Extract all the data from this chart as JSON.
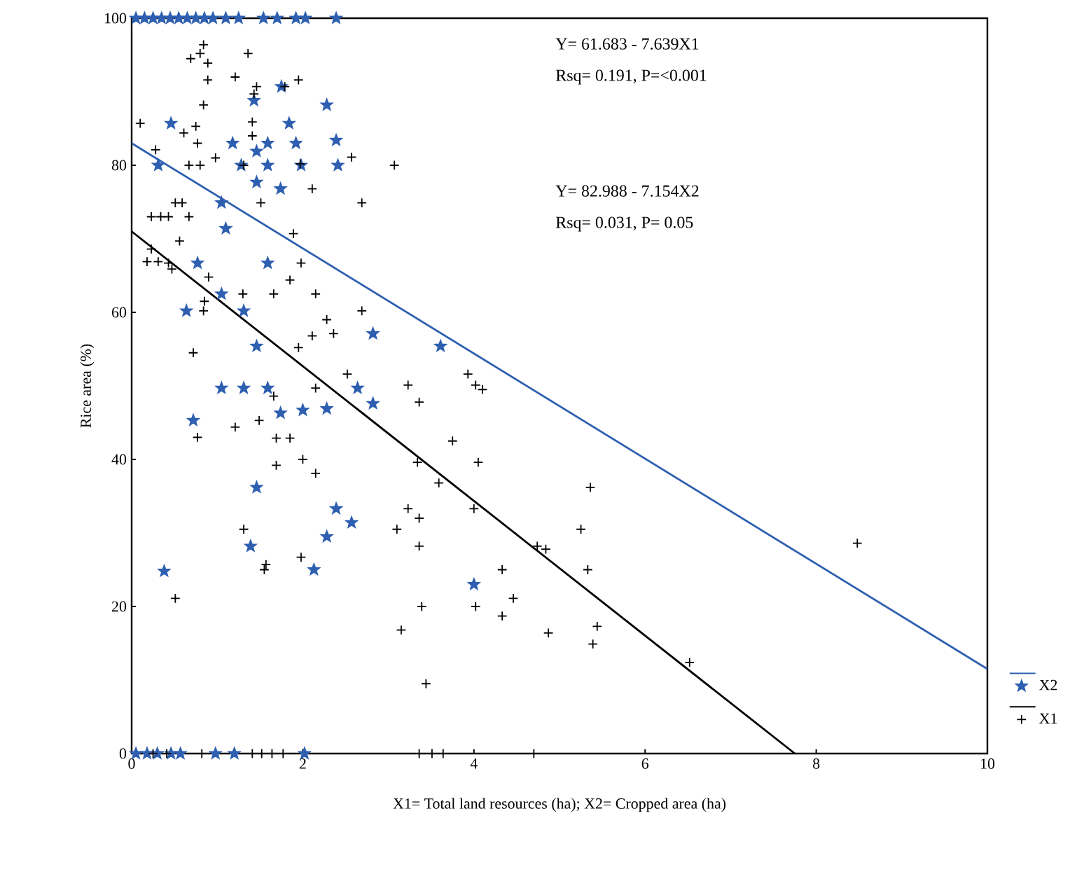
{
  "chart_data": {
    "type": "scatter",
    "xlabel": "X1= Total land resources (ha);  X2= Cropped area (ha)",
    "ylabel": "Rice area (%)",
    "xlim": [
      0,
      10
    ],
    "ylim": [
      0,
      100
    ],
    "xticks": [
      0,
      2,
      4,
      6,
      8,
      10
    ],
    "yticks": [
      0,
      20,
      40,
      60,
      80,
      100
    ],
    "grid": false,
    "legend": "bottom right",
    "annotations": [
      "Y= 61.683 - 7.639X1",
      "Rsq= 0.191, P=<0.001",
      "Y= 82.988 - 7.154X2",
      "Rsq= 0.031, P= 0.05"
    ],
    "series": [
      {
        "name": "X2",
        "color": "#2e5fb0",
        "marker": "star",
        "x": [
          0.05,
          0.15,
          0.25,
          0.35,
          0.45,
          0.55,
          0.65,
          0.75,
          0.85,
          0.95,
          1.1,
          1.25,
          1.54,
          1.7,
          1.92,
          2.03,
          2.39,
          1.75,
          1.43,
          2.28,
          0.46,
          1.84,
          1.18,
          1.59,
          1.92,
          2.39,
          1.46,
          0.31,
          1.28,
          1.59,
          1.98,
          2.41,
          1.46,
          1.74,
          1.05,
          1.1,
          0.77,
          1.59,
          1.05,
          0.64,
          1.31,
          2.82,
          1.46,
          3.61,
          1.05,
          1.31,
          1.59,
          2.64,
          2.82,
          1.74,
          2.0,
          2.28,
          0.72,
          1.46,
          2.39,
          2.57,
          2.28,
          1.39,
          0.38,
          2.13,
          4.0,
          0.05,
          0.18,
          0.3,
          0.46,
          0.57,
          0.98,
          1.2,
          2.02
        ],
        "values": [
          100,
          100,
          100,
          100,
          100,
          100,
          100,
          100,
          100,
          100,
          100,
          100,
          100,
          100,
          100,
          100,
          100,
          90.7,
          88.8,
          88.2,
          85.7,
          85.7,
          83,
          83,
          83,
          83.4,
          81.9,
          80,
          80,
          80,
          80,
          80,
          77.7,
          76.8,
          74.9,
          71.4,
          66.7,
          66.7,
          62.5,
          60.2,
          60.2,
          57.1,
          55.4,
          55.4,
          49.7,
          49.7,
          49.7,
          49.7,
          47.6,
          46.3,
          46.7,
          46.9,
          45.3,
          36.2,
          33.3,
          31.4,
          29.5,
          28.2,
          24.8,
          25,
          23,
          0,
          0,
          0,
          0,
          0,
          0,
          0,
          0
        ]
      },
      {
        "name": "X1",
        "color": "#000000",
        "marker": "cross",
        "x": [
          0.84,
          0.8,
          0.69,
          0.89,
          1.36,
          0.89,
          1.21,
          1.46,
          1.95,
          1.43,
          1.79,
          0.84,
          0.1,
          0.75,
          1.41,
          0.61,
          0.77,
          1.41,
          0.28,
          2.57,
          0.67,
          0.8,
          0.98,
          1.31,
          1.97,
          3.07,
          2.11,
          1.51,
          2.69,
          0.51,
          0.59,
          0.67,
          0.23,
          0.34,
          0.43,
          0.56,
          1.89,
          0.23,
          0.18,
          0.31,
          0.43,
          0.47,
          0.9,
          1.98,
          1.85,
          1.3,
          1.66,
          2.15,
          0.85,
          0.84,
          2.69,
          2.28,
          2.36,
          2.11,
          0.72,
          1.95,
          2.52,
          2.15,
          1.66,
          1.49,
          1.21,
          0.77,
          1.69,
          1.85,
          1.69,
          2.0,
          2.15,
          1.31,
          0.51,
          1.57,
          1.55,
          1.98,
          3.93,
          4.02,
          4.1,
          3.23,
          3.36,
          3.75,
          4.05,
          3.34,
          3.59,
          4.0,
          5.36,
          5.25,
          3.23,
          3.36,
          3.1,
          3.36,
          4.74,
          4.84,
          5.33,
          4.33,
          4.02,
          4.46,
          4.33,
          3.39,
          3.15,
          4.87,
          5.44,
          5.39,
          3.44,
          8.48,
          6.52,
          0.25,
          0.41,
          0.82,
          1.41,
          1.52,
          1.64,
          1.77,
          3.36,
          3.51,
          3.64,
          4.7
        ],
        "values": [
          96.4,
          95.2,
          94.5,
          93.9,
          95.2,
          91.6,
          92,
          90.7,
          91.6,
          89.7,
          90.7,
          88.2,
          85.7,
          85.3,
          85.9,
          84.4,
          83,
          84,
          82.1,
          81.1,
          80,
          80,
          81,
          80,
          80.2,
          80,
          76.8,
          74.9,
          74.9,
          74.9,
          74.9,
          73,
          73,
          73,
          73,
          69.7,
          70.7,
          68.6,
          66.9,
          66.9,
          66.7,
          65.9,
          64.8,
          66.7,
          64.4,
          62.5,
          62.5,
          62.5,
          61.5,
          60.2,
          60.2,
          59,
          57.1,
          56.8,
          54.5,
          55.2,
          51.6,
          49.7,
          48.6,
          45.3,
          44.4,
          43,
          42.9,
          42.9,
          39.2,
          40,
          38.1,
          30.5,
          21.1,
          25.7,
          25,
          26.7,
          51.6,
          50.1,
          49.5,
          50.1,
          47.8,
          42.5,
          39.6,
          39.6,
          36.8,
          33.3,
          36.2,
          30.5,
          33.3,
          32,
          30.5,
          28.2,
          28.2,
          27.8,
          25,
          25,
          20,
          21.1,
          18.7,
          20,
          16.8,
          16.4,
          17.3,
          14.9,
          9.5,
          28.6,
          12.4,
          0,
          0,
          0,
          0,
          0,
          0,
          0,
          0,
          0,
          0,
          0
        ]
      },
      {
        "type": "line",
        "color": "#2e5fb0",
        "marker": "none",
        "x": [
          0,
          10
        ],
        "values": [
          83,
          11.5
        ]
      },
      {
        "type": "line",
        "color": "#000000",
        "marker": "none",
        "x": [
          0,
          7.75
        ],
        "values": [
          71,
          0
        ]
      }
    ]
  }
}
